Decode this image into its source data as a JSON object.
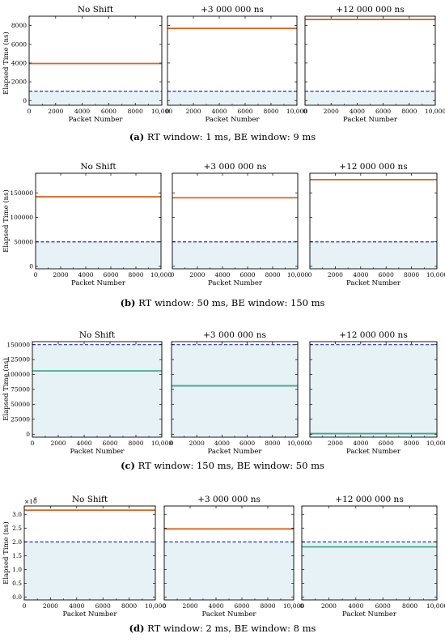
{
  "colors": {
    "rt_orange": "#d9661f",
    "rt_teal": "#3aaa8f",
    "be_dashed": "#1f2fd0",
    "shade": "#e6f2f6",
    "axis": "#000000"
  },
  "chart_data": [
    {
      "type": "line",
      "caption_label": "(a)",
      "caption_text": "RT window: 1 ms, BE window: 9 ms",
      "ylabel": "Elapsed Time (ns)",
      "xlabel": "Packet Number",
      "xlim": [
        0,
        10000
      ],
      "xticks": [
        0,
        2000,
        4000,
        6000,
        8000,
        10000
      ],
      "xtick_labels": [
        "0",
        "2000",
        "4000",
        "6000",
        "8000",
        "10,000"
      ],
      "ylim": [
        -500,
        9000
      ],
      "yticks": [
        0,
        2000,
        4000,
        6000,
        8000
      ],
      "ytick_labels": [
        "0",
        "2000",
        "4000",
        "6000",
        "8000"
      ],
      "y_multiplier": "",
      "be_window": 1000,
      "panels": [
        {
          "title": "No Shift",
          "rt_value": 3950,
          "rt_color": "rt_orange"
        },
        {
          "title": "+3 000 000 ns",
          "rt_value": 7700,
          "rt_color": "rt_orange"
        },
        {
          "title": "+12 000 000 ns",
          "rt_value": 8650,
          "rt_color": "rt_orange"
        }
      ]
    },
    {
      "type": "line",
      "caption_label": "(b)",
      "caption_text": "RT window: 50 ms, BE window: 150 ms",
      "ylabel": "Elapsed Time (ns)",
      "xlabel": "Packet Number",
      "xlim": [
        0,
        10000
      ],
      "xticks": [
        0,
        2000,
        4000,
        6000,
        8000,
        10000
      ],
      "xtick_labels": [
        "0",
        "2000",
        "4000",
        "6000",
        "8000",
        "10,000"
      ],
      "ylim": [
        -5000,
        190000
      ],
      "yticks": [
        0,
        50000,
        100000,
        150000
      ],
      "ytick_labels": [
        "0",
        "50000",
        "100000",
        "150000"
      ],
      "y_multiplier": "",
      "be_window": 50000,
      "panels": [
        {
          "title": "No Shift",
          "rt_value": 142000,
          "rt_color": "rt_orange"
        },
        {
          "title": "+3 000 000 ns",
          "rt_value": 140000,
          "rt_color": "rt_orange"
        },
        {
          "title": "+12 000 000 ns",
          "rt_value": 177000,
          "rt_color": "rt_orange"
        }
      ]
    },
    {
      "type": "line",
      "caption_label": "(c)",
      "caption_text": "RT window: 150 ms, BE window: 50 ms",
      "ylabel": "Elapsed Time (ns)",
      "xlabel": "Packet Number",
      "xlim": [
        0,
        10000
      ],
      "xticks": [
        0,
        2000,
        4000,
        6000,
        8000,
        10000
      ],
      "xtick_labels": [
        "0",
        "2000",
        "4000",
        "6000",
        "8000",
        "10,000"
      ],
      "ylim": [
        -5000,
        155000
      ],
      "yticks": [
        0,
        25000,
        50000,
        75000,
        100000,
        125000,
        150000
      ],
      "ytick_labels": [
        "0",
        "25000",
        "50000",
        "75000",
        "100000",
        "125000",
        "150000"
      ],
      "y_multiplier": "",
      "be_window": 150000,
      "panels": [
        {
          "title": "No Shift",
          "rt_value": 106000,
          "rt_color": "rt_teal"
        },
        {
          "title": "+3 000 000 ns",
          "rt_value": 81000,
          "rt_color": "rt_teal"
        },
        {
          "title": "+12 000 000 ns",
          "rt_value": 1000,
          "rt_color": "rt_teal"
        }
      ]
    },
    {
      "type": "line",
      "caption_label": "(d)",
      "caption_text": "RT window: 2 ms, BE window: 8 ms",
      "ylabel": "Elapsed Time (ns)",
      "xlabel": "Packet Number",
      "xlim": [
        0,
        10000
      ],
      "xticks": [
        0,
        2000,
        4000,
        6000,
        8000,
        10000
      ],
      "xtick_labels": [
        "0",
        "2000",
        "4000",
        "6000",
        "8000",
        "10,000"
      ],
      "ylim": [
        -0.1,
        3.3
      ],
      "yticks": [
        0,
        0.5,
        1.0,
        1.5,
        2.0,
        2.5,
        3.0
      ],
      "ytick_labels": [
        "0.0",
        "0.5",
        "1.0",
        "1.5",
        "2.0",
        "2.5",
        "3.0"
      ],
      "y_multiplier": "×10",
      "y_multiplier_exp": "6",
      "be_window": 2.0,
      "panels": [
        {
          "title": "No Shift",
          "rt_value": 3.15,
          "rt_color": "rt_orange"
        },
        {
          "title": "+3 000 000 ns",
          "rt_value": 2.47,
          "rt_color": "rt_orange"
        },
        {
          "title": "+12 000 000 ns",
          "rt_value": 1.82,
          "rt_color": "rt_teal"
        }
      ]
    }
  ]
}
